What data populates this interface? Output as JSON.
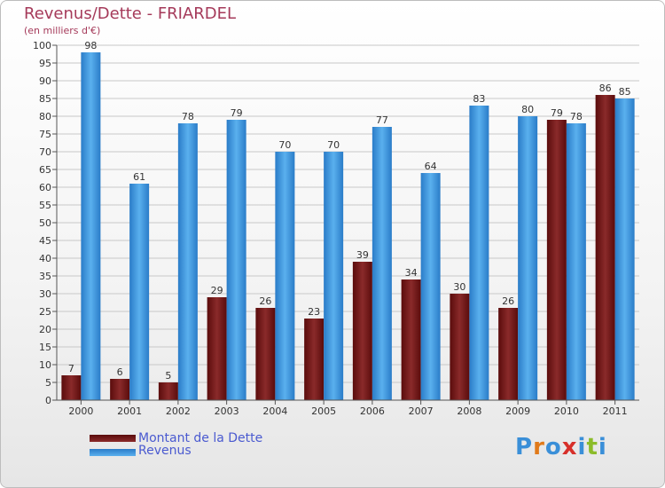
{
  "chart_data": {
    "type": "bar",
    "title": "Revenus/Dette - FRIARDEL",
    "subtitle": "(en milliers d'€)",
    "categories": [
      "2000",
      "2001",
      "2002",
      "2003",
      "2004",
      "2005",
      "2006",
      "2007",
      "2008",
      "2009",
      "2010",
      "2011"
    ],
    "series": [
      {
        "name": "Montant de la Dette",
        "values": [
          7,
          6,
          5,
          29,
          26,
          23,
          39,
          34,
          30,
          26,
          79,
          86
        ],
        "color": "#7a1a1a"
      },
      {
        "name": "Revenus",
        "values": [
          98,
          61,
          78,
          79,
          70,
          70,
          77,
          64,
          83,
          80,
          78,
          85
        ],
        "color": "#3a9ae0"
      }
    ],
    "ylim": [
      0,
      100
    ],
    "yticks": [
      0,
      5,
      10,
      15,
      20,
      25,
      30,
      35,
      40,
      45,
      50,
      55,
      60,
      65,
      70,
      75,
      80,
      85,
      90,
      95,
      100
    ],
    "grid": true,
    "legend": "bottom-left",
    "data_labels": true
  },
  "logo_text": "Proxiti",
  "logo_letters": [
    {
      "ch": "P",
      "color": "#3a8fd8"
    },
    {
      "ch": "r",
      "color": "#e07a1a"
    },
    {
      "ch": "o",
      "color": "#3a8fd8"
    },
    {
      "ch": "x",
      "color": "#d7302a"
    },
    {
      "ch": "i",
      "color": "#3a8fd8"
    },
    {
      "ch": "t",
      "color": "#8cbc2a"
    },
    {
      "ch": "i",
      "color": "#3a8fd8"
    }
  ]
}
